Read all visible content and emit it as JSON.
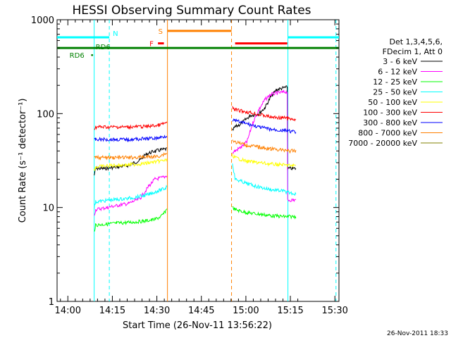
{
  "chart_data": {
    "type": "line",
    "title": "HESSI Observing Summary Count Rates",
    "xlabel": "Start Time (26-Nov-11 13:56:22)",
    "ylabel": "Count Rate (s⁻¹ detector⁻¹)",
    "x_unit": "minutes after 13:56:22",
    "xlim": [
      0,
      95
    ],
    "ylim": [
      1,
      1000
    ],
    "yscale": "log",
    "x_ticks": [
      {
        "label": "14:00",
        "t": 3.63
      },
      {
        "label": "14:15",
        "t": 18.63
      },
      {
        "label": "14:30",
        "t": 33.63
      },
      {
        "label": "14:45",
        "t": 48.63
      },
      {
        "label": "15:00",
        "t": 63.63
      },
      {
        "label": "15:15",
        "t": 78.63
      },
      {
        "label": "15:30",
        "t": 93.63
      }
    ],
    "y_ticks": [
      {
        "label": "1",
        "v": 1
      },
      {
        "label": "10",
        "v": 10
      },
      {
        "label": "100",
        "v": 100
      },
      {
        "label": "1000",
        "v": 1000
      }
    ],
    "legend_header": [
      "Det 1,3,4,5,6,",
      "FDecim 1, Att 0"
    ],
    "series": [
      {
        "name": "3 - 6 keV",
        "color": "#000000",
        "points": [
          [
            12.5,
            22
          ],
          [
            13.0,
            26
          ],
          [
            16,
            26
          ],
          [
            20,
            27
          ],
          [
            24,
            28
          ],
          [
            28,
            32
          ],
          [
            30,
            37
          ],
          [
            33,
            40
          ],
          [
            37,
            42
          ],
          [
            37.1,
            0
          ],
          [
            59,
            0
          ],
          [
            59.1,
            66
          ],
          [
            60,
            72
          ],
          [
            62,
            78
          ],
          [
            65,
            95
          ],
          [
            68,
            100
          ],
          [
            70,
            115
          ],
          [
            72,
            150
          ],
          [
            74,
            180
          ],
          [
            77,
            190
          ],
          [
            77.6,
            190
          ],
          [
            77.7,
            26
          ],
          [
            80.5,
            26
          ]
        ]
      },
      {
        "name": "6 - 12 keV",
        "color": "#ff00ff",
        "points": [
          [
            12.5,
            8
          ],
          [
            13.0,
            9.5
          ],
          [
            17,
            10
          ],
          [
            20,
            10.5
          ],
          [
            24,
            11
          ],
          [
            28,
            12.5
          ],
          [
            31,
            17
          ],
          [
            33,
            20
          ],
          [
            36,
            21
          ],
          [
            37,
            22
          ],
          [
            37.1,
            0
          ],
          [
            59,
            0
          ],
          [
            59.1,
            38
          ],
          [
            60,
            40
          ],
          [
            62,
            44
          ],
          [
            64,
            50
          ],
          [
            66,
            80
          ],
          [
            68,
            110
          ],
          [
            70,
            140
          ],
          [
            72,
            160
          ],
          [
            74,
            165
          ],
          [
            77,
            170
          ],
          [
            77.6,
            170
          ],
          [
            77.7,
            12
          ],
          [
            80.5,
            12
          ]
        ]
      },
      {
        "name": "12 - 25 keV",
        "color": "#00ff00",
        "points": [
          [
            12.5,
            5.5
          ],
          [
            13.0,
            6.5
          ],
          [
            20,
            6.8
          ],
          [
            26,
            7
          ],
          [
            30,
            7.2
          ],
          [
            33,
            7.5
          ],
          [
            35,
            8
          ],
          [
            36.5,
            9
          ],
          [
            37,
            10
          ],
          [
            37.1,
            0
          ],
          [
            59,
            0
          ],
          [
            59.1,
            10
          ],
          [
            60,
            9.5
          ],
          [
            64,
            8.8
          ],
          [
            68,
            8.5
          ],
          [
            72,
            8.2
          ],
          [
            76,
            8
          ],
          [
            77.6,
            8
          ],
          [
            77.7,
            8
          ],
          [
            80.5,
            8
          ]
        ]
      },
      {
        "name": "25 - 50 keV",
        "color": "#00ffff",
        "points": [
          [
            12.5,
            10
          ],
          [
            13.0,
            11.5
          ],
          [
            18,
            12
          ],
          [
            24,
            12.5
          ],
          [
            30,
            13.5
          ],
          [
            34,
            15
          ],
          [
            36.5,
            16
          ],
          [
            37,
            17
          ],
          [
            37.1,
            0
          ],
          [
            59,
            0
          ],
          [
            59.1,
            30
          ],
          [
            60,
            20
          ],
          [
            64,
            18
          ],
          [
            68,
            16.5
          ],
          [
            72,
            15.5
          ],
          [
            76,
            15
          ],
          [
            77.6,
            14.5
          ],
          [
            77.7,
            14.5
          ],
          [
            80.5,
            14
          ]
        ]
      },
      {
        "name": "50 - 100 keV",
        "color": "#ffff00",
        "points": [
          [
            12.5,
            25
          ],
          [
            13.0,
            27
          ],
          [
            18,
            28
          ],
          [
            24,
            28.5
          ],
          [
            30,
            29.5
          ],
          [
            34,
            31
          ],
          [
            37,
            32
          ],
          [
            37.1,
            0
          ],
          [
            59,
            0
          ],
          [
            59.1,
            36
          ],
          [
            60,
            34
          ],
          [
            64,
            31
          ],
          [
            68,
            30
          ],
          [
            72,
            29
          ],
          [
            76,
            28.5
          ],
          [
            77.6,
            28
          ],
          [
            77.7,
            28
          ],
          [
            80.5,
            28
          ]
        ]
      },
      {
        "name": "100 - 300 keV",
        "color": "#ff0000",
        "points": [
          [
            12.5,
            70
          ],
          [
            13.0,
            72
          ],
          [
            18,
            72
          ],
          [
            24,
            72
          ],
          [
            30,
            73
          ],
          [
            34,
            75
          ],
          [
            37,
            80
          ],
          [
            37.1,
            0
          ],
          [
            59,
            0
          ],
          [
            59.1,
            115
          ],
          [
            60,
            110
          ],
          [
            64,
            104
          ],
          [
            68,
            98
          ],
          [
            72,
            92
          ],
          [
            76,
            90
          ],
          [
            77.6,
            90
          ],
          [
            77.7,
            88
          ],
          [
            80.5,
            87
          ]
        ]
      },
      {
        "name": "300 - 800 keV",
        "color": "#0000ff",
        "points": [
          [
            12.5,
            52
          ],
          [
            13.0,
            53
          ],
          [
            18,
            53
          ],
          [
            24,
            53
          ],
          [
            30,
            54
          ],
          [
            34,
            55
          ],
          [
            37,
            58
          ],
          [
            37.1,
            0
          ],
          [
            59,
            0
          ],
          [
            59.1,
            86
          ],
          [
            60,
            84
          ],
          [
            64,
            78
          ],
          [
            68,
            72
          ],
          [
            72,
            68
          ],
          [
            76,
            66
          ],
          [
            77.6,
            66
          ],
          [
            77.7,
            65
          ],
          [
            80.5,
            64
          ]
        ]
      },
      {
        "name": "800 - 7000 keV",
        "color": "#ff8000",
        "points": [
          [
            12.5,
            33
          ],
          [
            13.0,
            34
          ],
          [
            18,
            34
          ],
          [
            24,
            34
          ],
          [
            30,
            34.5
          ],
          [
            34,
            35
          ],
          [
            37,
            38
          ],
          [
            37.1,
            0
          ],
          [
            59,
            0
          ],
          [
            59.1,
            52
          ],
          [
            60,
            50
          ],
          [
            64,
            46
          ],
          [
            68,
            44
          ],
          [
            72,
            42
          ],
          [
            76,
            41
          ],
          [
            77.6,
            41
          ],
          [
            77.7,
            40
          ],
          [
            80.5,
            40
          ]
        ]
      },
      {
        "name": "7000 - 20000 keV",
        "color": "#808000",
        "points": []
      }
    ],
    "grid": false,
    "legend_position": "right",
    "vlines": [
      {
        "t": 12.5,
        "color": "#00ffff",
        "style": "solid"
      },
      {
        "t": 17.6,
        "color": "#00ffff",
        "style": "dashed"
      },
      {
        "t": 37.2,
        "color": "#ff8000",
        "style": "solid"
      },
      {
        "t": 58.8,
        "color": "#ff8000",
        "style": "dashed"
      },
      {
        "t": 77.8,
        "color": "#00ffff",
        "style": "solid"
      },
      {
        "t": 94.0,
        "color": "#00ffff",
        "style": "dashed"
      }
    ],
    "flags": [
      {
        "label": "N",
        "color": "#00ffff",
        "y": 650,
        "segments": [
          [
            0,
            17.6
          ],
          [
            77.8,
            95
          ]
        ]
      },
      {
        "label": "S",
        "color": "#ff8000",
        "y": 760,
        "segments": [
          [
            37.2,
            58.8
          ]
        ]
      },
      {
        "label": "F",
        "color": "#ff0000",
        "y": 560,
        "segments": [
          [
            34,
            36
          ],
          [
            60,
            77.6
          ]
        ]
      },
      {
        "label": "RD6",
        "color": "#008000",
        "y": 500,
        "segments": [
          [
            0,
            95
          ]
        ]
      }
    ],
    "markers": [
      {
        "label": "RD6",
        "color": "#008000",
        "t": 11.8,
        "v": 420
      }
    ],
    "bottom_right": "26-Nov-2011 18:33"
  }
}
